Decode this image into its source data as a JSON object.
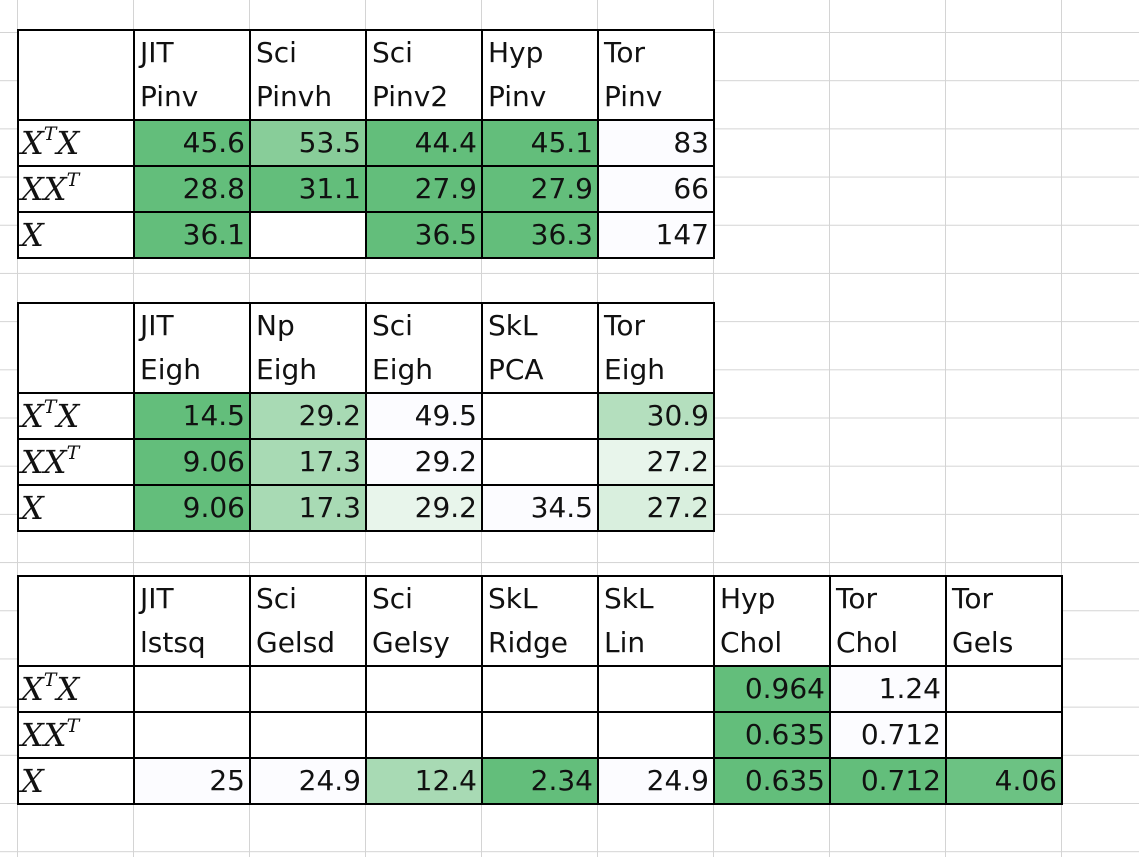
{
  "colors": {
    "fill_1": "#63BE7B",
    "fill_2": "#6CC283",
    "fill_3": "#88CD99",
    "fill_4": "#A8DAB4",
    "fill_5": "#B4DFBE",
    "fill_6": "#D9EFDE",
    "fill_7": "#E8F5EB",
    "fill_low": "#FCFCFF",
    "gridline": "#D4D4D4",
    "border": "#000000"
  },
  "tables": [
    {
      "libs": [
        "JIT",
        "Sci",
        "Sci",
        "Hyp",
        "Tor"
      ],
      "fns": [
        "Pinv",
        "Pinvh",
        "Pinv2",
        "Pinv",
        "Pinv"
      ],
      "rows": [
        {
          "label": "X",
          "sup1": "T",
          "label2": "X",
          "sup2": "",
          "cells": [
            {
              "v": "45.6",
              "c": "#63BE7B"
            },
            {
              "v": "53.5",
              "c": "#88CD99"
            },
            {
              "v": "44.4",
              "c": "#63BE7B"
            },
            {
              "v": "45.1",
              "c": "#63BE7B"
            },
            {
              "v": "83",
              "c": "#FCFCFF"
            }
          ]
        },
        {
          "label": "X",
          "sup1": "",
          "label2": "X",
          "sup2": "T",
          "cells": [
            {
              "v": "28.8",
              "c": "#63BE7B"
            },
            {
              "v": "31.1",
              "c": "#63BE7B"
            },
            {
              "v": "27.9",
              "c": "#63BE7B"
            },
            {
              "v": "27.9",
              "c": "#63BE7B"
            },
            {
              "v": "66",
              "c": "#FCFCFF"
            }
          ]
        },
        {
          "label": "X",
          "sup1": "",
          "label2": "",
          "sup2": "",
          "cells": [
            {
              "v": "36.1",
              "c": "#63BE7B"
            },
            {
              "v": "",
              "c": "#FFFFFF"
            },
            {
              "v": "36.5",
              "c": "#63BE7B"
            },
            {
              "v": "36.3",
              "c": "#63BE7B"
            },
            {
              "v": "147",
              "c": "#FCFCFF"
            }
          ]
        }
      ]
    },
    {
      "libs": [
        "JIT",
        "Np",
        "Sci",
        "SkL",
        "Tor"
      ],
      "fns": [
        "Eigh",
        "Eigh",
        "Eigh",
        "PCA",
        "Eigh"
      ],
      "rows": [
        {
          "label": "X",
          "sup1": "T",
          "label2": "X",
          "sup2": "",
          "cells": [
            {
              "v": "14.5",
              "c": "#63BE7B"
            },
            {
              "v": "29.2",
              "c": "#A8DAB4"
            },
            {
              "v": "49.5",
              "c": "#FCFCFF"
            },
            {
              "v": "",
              "c": "#FFFFFF"
            },
            {
              "v": "30.9",
              "c": "#B4DFBE"
            }
          ]
        },
        {
          "label": "X",
          "sup1": "",
          "label2": "X",
          "sup2": "T",
          "cells": [
            {
              "v": "9.06",
              "c": "#63BE7B"
            },
            {
              "v": "17.3",
              "c": "#A8DAB4"
            },
            {
              "v": "29.2",
              "c": "#FCFCFF"
            },
            {
              "v": "",
              "c": "#FFFFFF"
            },
            {
              "v": "27.2",
              "c": "#E8F5EB"
            }
          ]
        },
        {
          "label": "X",
          "sup1": "",
          "label2": "",
          "sup2": "",
          "cells": [
            {
              "v": "9.06",
              "c": "#63BE7B"
            },
            {
              "v": "17.3",
              "c": "#A8DAB4"
            },
            {
              "v": "29.2",
              "c": "#E8F5EB"
            },
            {
              "v": "34.5",
              "c": "#FCFCFF"
            },
            {
              "v": "27.2",
              "c": "#D9EFDE"
            }
          ]
        }
      ]
    },
    {
      "libs": [
        "JIT",
        "Sci",
        "Sci",
        "SkL",
        "SkL",
        "Hyp",
        "Tor",
        "Tor"
      ],
      "fns": [
        "lstsq",
        "Gelsd",
        "Gelsy",
        "Ridge",
        "Lin",
        "Chol",
        "Chol",
        "Gels"
      ],
      "rows": [
        {
          "label": "X",
          "sup1": "T",
          "label2": "X",
          "sup2": "",
          "cells": [
            {
              "v": "",
              "c": "#FFFFFF"
            },
            {
              "v": "",
              "c": "#FFFFFF"
            },
            {
              "v": "",
              "c": "#FFFFFF"
            },
            {
              "v": "",
              "c": "#FFFFFF"
            },
            {
              "v": "",
              "c": "#FFFFFF"
            },
            {
              "v": "0.964",
              "c": "#63BE7B"
            },
            {
              "v": "1.24",
              "c": "#FCFCFF"
            },
            {
              "v": "",
              "c": "#FFFFFF"
            }
          ]
        },
        {
          "label": "X",
          "sup1": "",
          "label2": "X",
          "sup2": "T",
          "cells": [
            {
              "v": "",
              "c": "#FFFFFF"
            },
            {
              "v": "",
              "c": "#FFFFFF"
            },
            {
              "v": "",
              "c": "#FFFFFF"
            },
            {
              "v": "",
              "c": "#FFFFFF"
            },
            {
              "v": "",
              "c": "#FFFFFF"
            },
            {
              "v": "0.635",
              "c": "#63BE7B"
            },
            {
              "v": "0.712",
              "c": "#FCFCFF"
            },
            {
              "v": "",
              "c": "#FFFFFF"
            }
          ]
        },
        {
          "label": "X",
          "sup1": "",
          "label2": "",
          "sup2": "",
          "cells": [
            {
              "v": "25",
              "c": "#FCFCFF"
            },
            {
              "v": "24.9",
              "c": "#FCFCFF"
            },
            {
              "v": "12.4",
              "c": "#A8DAB4"
            },
            {
              "v": "2.34",
              "c": "#63BE7B"
            },
            {
              "v": "24.9",
              "c": "#FCFCFF"
            },
            {
              "v": "0.635",
              "c": "#63BE7B"
            },
            {
              "v": "0.712",
              "c": "#63BE7B"
            },
            {
              "v": "4.06",
              "c": "#6CC283"
            }
          ]
        }
      ]
    }
  ]
}
